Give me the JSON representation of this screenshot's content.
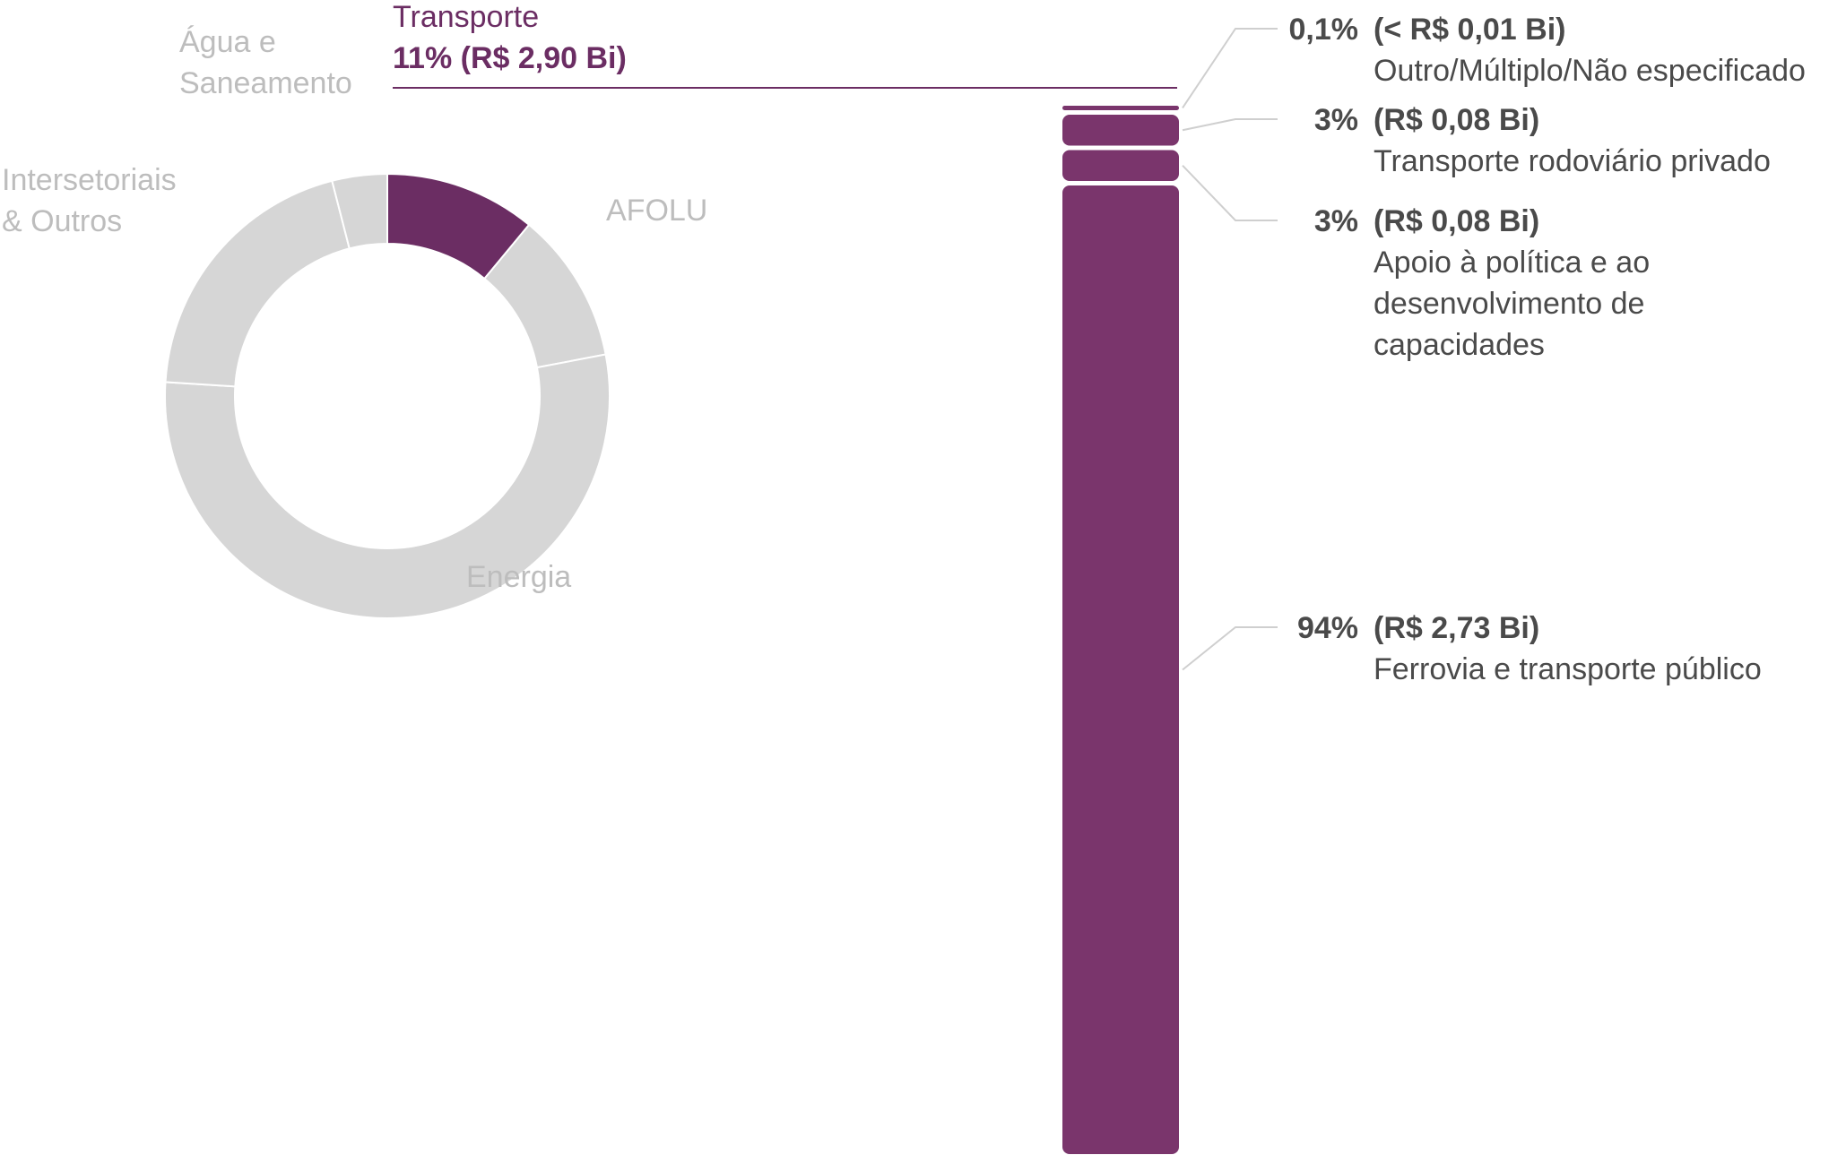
{
  "colors": {
    "highlight": "#7a356c",
    "highlight_dark": "#6b2d63",
    "other": "#d6d6d6",
    "text": "#4a4a4a",
    "muted_text": "#bdbdbd",
    "connector": "#cfcfcf"
  },
  "chart_data": [
    {
      "type": "pie",
      "variant": "donut",
      "slices": [
        {
          "label": "Transporte",
          "value": 11,
          "highlighted": true
        },
        {
          "label": "AFOLU",
          "value": 11
        },
        {
          "label": "Energia",
          "value": 54
        },
        {
          "label": "Intersetoriais & Outros",
          "value": 20
        },
        {
          "label": "Água e Saneamento",
          "value": 4
        }
      ],
      "highlight_label": {
        "name": "Transporte",
        "value_text": "11% (R$ 2,90 Bi)"
      },
      "labels": {
        "agua_line1": "Água e",
        "agua_line2": "Saneamento",
        "inter_line1": "Intersetoriais",
        "inter_line2": "& Outros",
        "afolu": "AFOLU",
        "energia": "Energia"
      }
    },
    {
      "type": "bar",
      "variant": "stacked-100",
      "parent": "Transporte",
      "segments": [
        {
          "pct": 0.1,
          "pct_text": "0,1%",
          "value_text": "(< R$ 0,01 Bi)",
          "description": [
            "Outro/Múltiplo/Não especificado"
          ]
        },
        {
          "pct": 3,
          "pct_text": "3%",
          "value_text": "(R$ 0,08 Bi)",
          "description": [
            "Transporte rodoviário privado"
          ]
        },
        {
          "pct": 3,
          "pct_text": "3%",
          "value_text": "(R$ 0,08 Bi)",
          "description": [
            "Apoio à política e ao",
            "desenvolvimento de",
            "capacidades"
          ]
        },
        {
          "pct": 94,
          "pct_text": "94%",
          "value_text": "(R$ 2,73 Bi)",
          "description": [
            "Ferrovia e transporte público"
          ]
        }
      ]
    }
  ]
}
